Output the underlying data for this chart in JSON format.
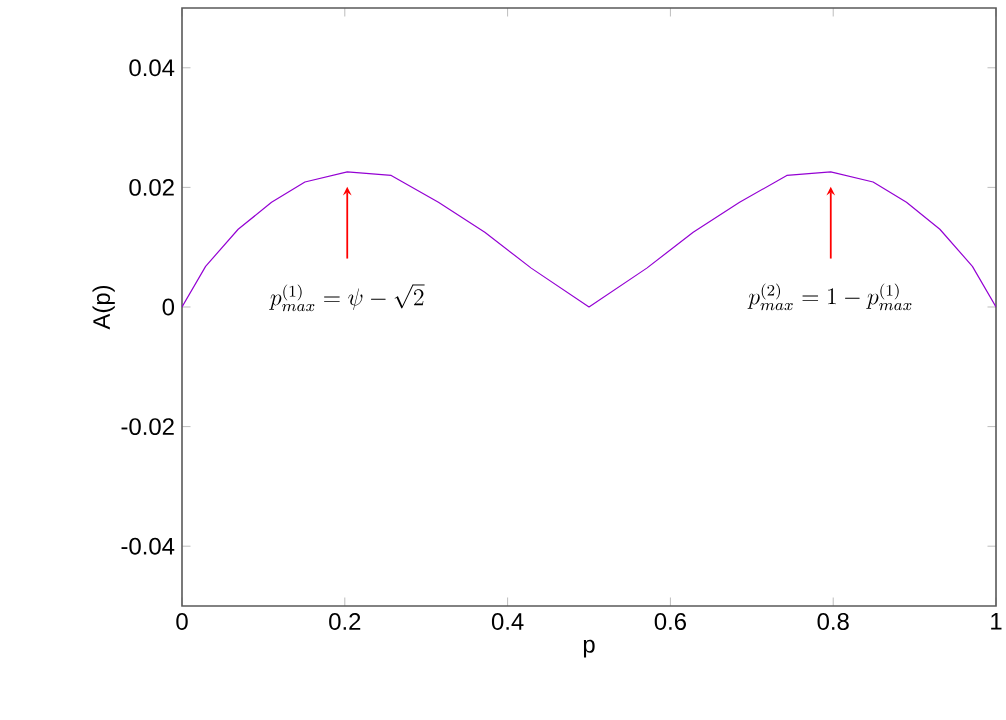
{
  "chart_data": {
    "type": "line",
    "xlabel": "p",
    "ylabel": "A(p)",
    "x": [
      0,
      0.029,
      0.069,
      0.11,
      0.151,
      0.203,
      0.257,
      0.315,
      0.372,
      0.429,
      0.5,
      0.571,
      0.628,
      0.685,
      0.743,
      0.797,
      0.849,
      0.89,
      0.931,
      0.971,
      1
    ],
    "series": [
      {
        "color": "#9400d3",
        "values": [
          0,
          0.0068,
          0.013,
          0.0175,
          0.0209,
          0.0226,
          0.022,
          0.0175,
          0.0125,
          0.0065,
          0,
          0.0065,
          0.0125,
          0.0175,
          0.022,
          0.0226,
          0.0209,
          0.0175,
          0.013,
          0.0068,
          0
        ]
      }
    ],
    "xlim": [
      0,
      1
    ],
    "xticks": [
      0,
      0.2,
      0.4,
      0.6,
      0.8,
      1
    ],
    "ylim": [
      -0.05,
      0.05
    ],
    "yticks": [
      -0.04,
      -0.02,
      0,
      0.02,
      0.04
    ],
    "annotations": [
      "p^{(1)}_{max} = \\psi - \\sqrt{2}",
      "p^{(2)}_{max} = 1 - p^{(1)}_{max}"
    ],
    "grid": false,
    "marker": "none",
    "line_style": "solid"
  }
}
